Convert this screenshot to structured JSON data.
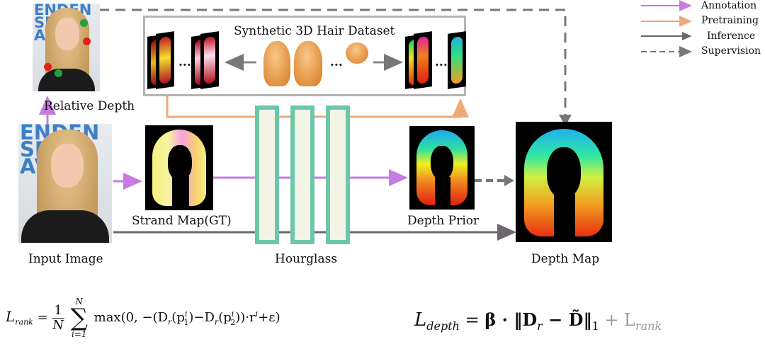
{
  "legend": {
    "annotation": "Annotation",
    "pretraining": "Pretraining",
    "inference": "Inference",
    "supervision": "Supervision"
  },
  "labels": {
    "dataset_title": "Synthetic 3D  Hair Dataset",
    "relative_depth": "Relative Depth",
    "strand_map": "Strand Map(GT)",
    "input_image": "Input Image",
    "hourglass": "Hourglass",
    "depth_prior": "Depth Prior",
    "depth_map": "Depth Map",
    "ellipsis": "..."
  },
  "photo_text": {
    "backdrop_line1": "ENDEN",
    "backdrop_line2": "SPI",
    "backdrop_line3": "AV"
  },
  "equations": {
    "rank_lhs": "L",
    "rank_sub": "rank",
    "eq": "=",
    "frac_num": "1",
    "frac_den": "N",
    "sum_top": "N",
    "sum_sym": "∑",
    "sum_bot": "i=1",
    "rank_rhs": "max(0, −(D",
    "rank_rhs_mid": "(p",
    "rank_rhs_2": ")−D",
    "rank_rhs_3": "(p",
    "rank_rhs_4": "))·r",
    "rank_rhs_5": "+ε)",
    "sub_r": "r",
    "sup_i": "i",
    "sub_1": "1",
    "sub_2": "2",
    "depth_lhs": "L",
    "depth_sub": "depth",
    "depth_rhs": "β · ‖D",
    "depth_rhs_2": " − D̃‖",
    "depth_norm_sub": "1",
    "depth_plus": " + L",
    "depth_rank_sub": "rank"
  },
  "colors": {
    "annotation": "#c77be0",
    "pretraining": "#f0a878",
    "inference": "#6e6670",
    "supervision": "#777777",
    "hourglass_border": "#6cc7a8",
    "hourglass_fill": "#f2f4e6",
    "dataset_border": "#b5b5b5"
  }
}
